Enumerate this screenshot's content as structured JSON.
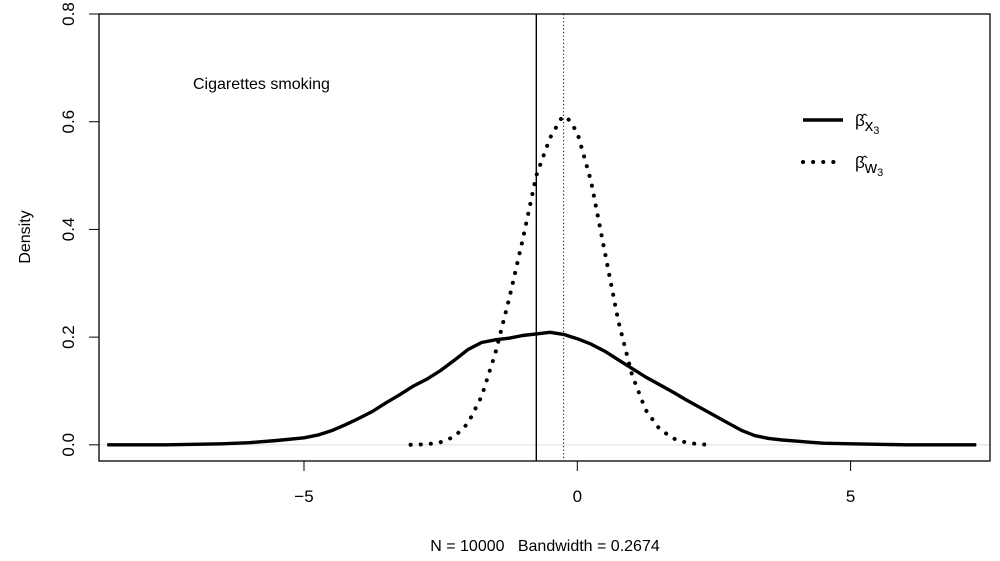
{
  "chart_data": {
    "type": "line",
    "annotation": "Cigarettes smoking",
    "xlabel": "N = 10000   Bandwidth = 0.2674",
    "ylabel": "Density",
    "xlim": [
      -8.75,
      7.55
    ],
    "ylim": [
      -0.03,
      0.8
    ],
    "x_ticks": [
      -5,
      0,
      5
    ],
    "x_tick_labels": [
      "−5",
      "0",
      "5"
    ],
    "y_ticks": [
      0,
      0.2,
      0.4,
      0.6,
      0.8
    ],
    "y_tick_labels": [
      "0.0",
      "0.2",
      "0.4",
      "0.6",
      "0.8"
    ],
    "grid": false,
    "baseline": 0,
    "legend_placement": "top-right",
    "vertical_lines": [
      {
        "x": -0.75,
        "style": "solid"
      },
      {
        "x": -0.25,
        "style": "dotted"
      }
    ],
    "series": [
      {
        "label_main": "β̂",
        "label_sub": "x",
        "label_subsub": "3",
        "style": "solid",
        "color": "#000000",
        "x": [
          -8.6,
          -7.5,
          -7.0,
          -6.5,
          -6.0,
          -5.5,
          -5.0,
          -4.75,
          -4.5,
          -4.25,
          -4.0,
          -3.75,
          -3.5,
          -3.25,
          -3.0,
          -2.75,
          -2.5,
          -2.25,
          -2.0,
          -1.75,
          -1.5,
          -1.25,
          -1.0,
          -0.75,
          -0.5,
          -0.25,
          0.0,
          0.25,
          0.5,
          0.75,
          1.0,
          1.25,
          1.5,
          1.75,
          2.0,
          2.25,
          2.5,
          2.75,
          3.0,
          3.25,
          3.5,
          3.75,
          4.0,
          4.25,
          4.5,
          5.0,
          5.5,
          6.0,
          6.5,
          7.0,
          7.3
        ],
        "y": [
          0.0,
          0.0,
          0.001,
          0.002,
          0.004,
          0.008,
          0.013,
          0.018,
          0.026,
          0.037,
          0.049,
          0.062,
          0.078,
          0.093,
          0.109,
          0.122,
          0.138,
          0.157,
          0.177,
          0.19,
          0.195,
          0.198,
          0.203,
          0.206,
          0.209,
          0.205,
          0.197,
          0.187,
          0.174,
          0.158,
          0.142,
          0.126,
          0.112,
          0.098,
          0.083,
          0.069,
          0.055,
          0.041,
          0.027,
          0.017,
          0.012,
          0.009,
          0.007,
          0.005,
          0.003,
          0.002,
          0.001,
          0.0,
          0.0,
          0.0,
          0.0
        ]
      },
      {
        "label_main": "β̂",
        "label_sub": "w",
        "label_subsub": "3",
        "style": "dotted",
        "color": "#000000",
        "x": [
          -3.05,
          -2.75,
          -2.5,
          -2.25,
          -2.0,
          -1.75,
          -1.5,
          -1.25,
          -1.0,
          -0.75,
          -0.5,
          -0.3,
          -0.2,
          0.0,
          0.25,
          0.5,
          0.75,
          1.0,
          1.25,
          1.5,
          1.75,
          2.0,
          2.25,
          2.45
        ],
        "y": [
          0.0,
          0.001,
          0.005,
          0.015,
          0.04,
          0.09,
          0.17,
          0.27,
          0.38,
          0.5,
          0.57,
          0.605,
          0.61,
          0.58,
          0.49,
          0.36,
          0.23,
          0.13,
          0.065,
          0.03,
          0.012,
          0.004,
          0.001,
          0.0
        ]
      }
    ]
  }
}
